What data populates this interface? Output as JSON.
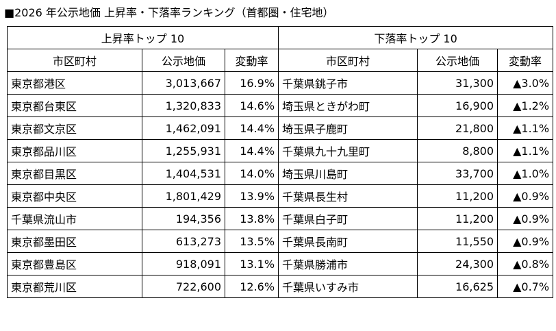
{
  "title": "■2026 年公示地価 上昇率・下落率ランキング（首都圏・住宅地）",
  "rising": {
    "header": "上昇率トップ 10",
    "columns": [
      "市区町村",
      "公示地価",
      "変動率"
    ],
    "rows": [
      {
        "municipality": "東京都港区",
        "price": "3,013,667",
        "change": "16.9%"
      },
      {
        "municipality": "東京都台東区",
        "price": "1,320,833",
        "change": "14.6%"
      },
      {
        "municipality": "東京都文京区",
        "price": "1,462,091",
        "change": "14.4%"
      },
      {
        "municipality": "東京都品川区",
        "price": "1,255,931",
        "change": "14.4%"
      },
      {
        "municipality": "東京都目黒区",
        "price": "1,404,531",
        "change": "14.0%"
      },
      {
        "municipality": "東京都中央区",
        "price": "1,801,429",
        "change": "13.9%"
      },
      {
        "municipality": "千葉県流山市",
        "price": "194,356",
        "change": "13.8%"
      },
      {
        "municipality": "東京都墨田区",
        "price": "613,273",
        "change": "13.5%"
      },
      {
        "municipality": "東京都豊島区",
        "price": "918,091",
        "change": "13.1%"
      },
      {
        "municipality": "東京都荒川区",
        "price": "722,600",
        "change": "12.6%"
      }
    ]
  },
  "falling": {
    "header": "下落率トップ 10",
    "columns": [
      "市区町村",
      "公示地価",
      "変動率"
    ],
    "rows": [
      {
        "municipality": "千葉県銚子市",
        "price": "31,300",
        "change": "▲3.0%"
      },
      {
        "municipality": "埼玉県ときがわ町",
        "price": "16,900",
        "change": "▲1.2%"
      },
      {
        "municipality": "埼玉県子鹿町",
        "price": "21,800",
        "change": "▲1.1%"
      },
      {
        "municipality": "千葉県九十九里町",
        "price": "8,800",
        "change": "▲1.1%"
      },
      {
        "municipality": "埼玉県川島町",
        "price": "33,700",
        "change": "▲1.0%"
      },
      {
        "municipality": "千葉県長生村",
        "price": "11,200",
        "change": "▲0.9%"
      },
      {
        "municipality": "千葉県白子町",
        "price": "11,200",
        "change": "▲0.9%"
      },
      {
        "municipality": "千葉県長南町",
        "price": "11,550",
        "change": "▲0.9%"
      },
      {
        "municipality": "千葉県勝浦市",
        "price": "24,300",
        "change": "▲0.8%"
      },
      {
        "municipality": "千葉県いすみ市",
        "price": "16,625",
        "change": "▲0.7%"
      }
    ]
  }
}
